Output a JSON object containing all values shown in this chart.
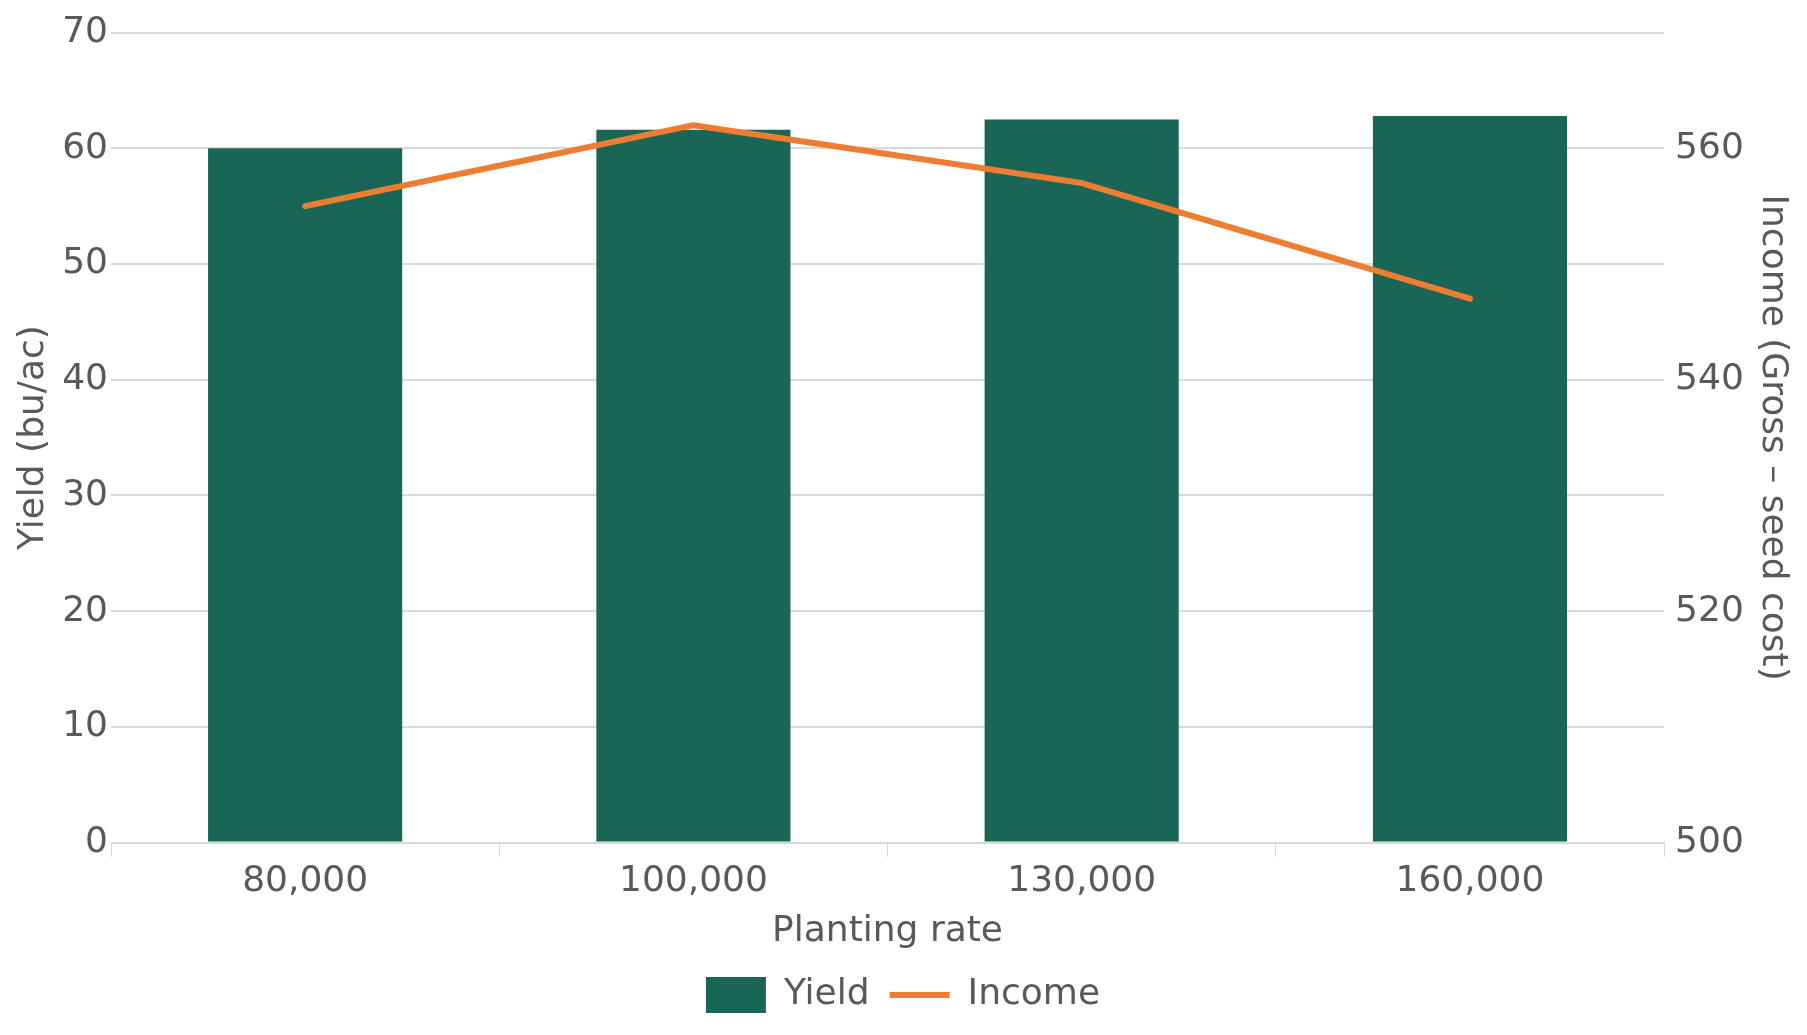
{
  "chart_data": {
    "type": "bar",
    "xlabel": "Planting rate",
    "ylabel": "Yield (bu/ac)",
    "y2label": "Income (Gross – seed cost)",
    "categories": [
      "80,000",
      "100,000",
      "130,000",
      "160,000"
    ],
    "series": [
      {
        "name": "Yield",
        "color": "#1a6656",
        "values": [
          60.0,
          61.6,
          62.5,
          62.8
        ]
      },
      {
        "name": "Income",
        "type": "line",
        "axis": "y2",
        "color": "#ed7d31",
        "values": [
          555,
          562,
          557,
          547
        ]
      }
    ],
    "ylim": [
      0,
      70
    ],
    "yticks": [
      0,
      10,
      20,
      30,
      40,
      50,
      60,
      70
    ],
    "y2lim": [
      500,
      570
    ],
    "y2ticks": [
      500,
      520,
      540,
      560
    ],
    "grid": "y",
    "legend": "bottom",
    "marker": "none"
  }
}
